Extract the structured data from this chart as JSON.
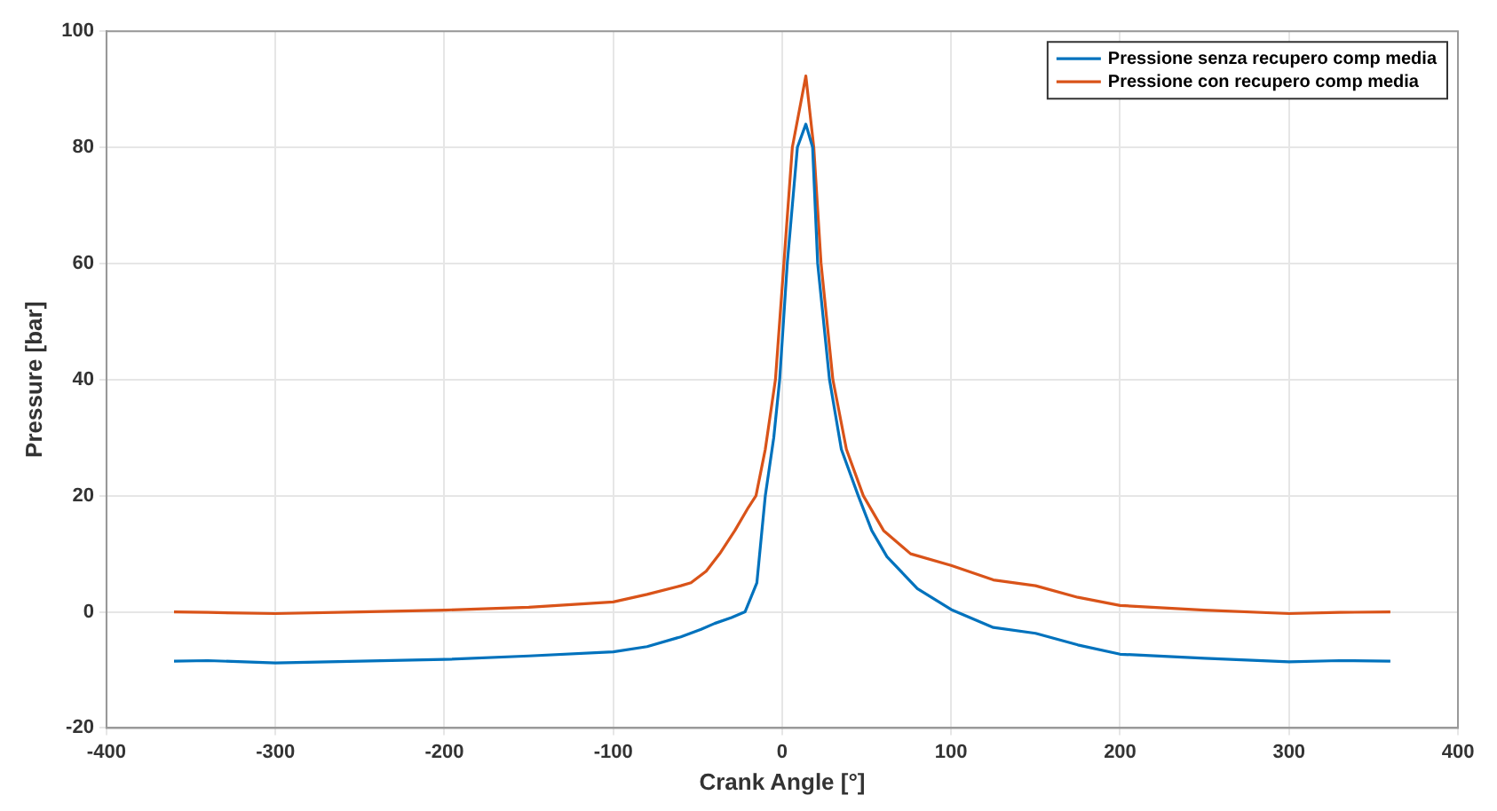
{
  "chart_data": {
    "type": "line",
    "xlabel": "Crank Angle [°]",
    "ylabel": "Pressure [bar]",
    "xlim": [
      -400,
      400
    ],
    "xticks": [
      -400,
      -300,
      -200,
      -100,
      0,
      100,
      200,
      300,
      400
    ],
    "ylim": [
      -20,
      100
    ],
    "yticks": [
      -20,
      0,
      20,
      40,
      60,
      80,
      100
    ],
    "grid": true,
    "legend": "top right",
    "marker": "none",
    "line_style": "solid",
    "series": [
      {
        "name": "Pressione senza recupero comp media",
        "color": "#0072bd",
        "x": [
          -360,
          -340,
          -300,
          -250,
          -200,
          -150,
          -100,
          -80,
          -60,
          -48,
          -40,
          -30,
          -22,
          -15,
          -10,
          -5,
          -1.5,
          3,
          9,
          14,
          18,
          21,
          28,
          35,
          45,
          53,
          62,
          80,
          100,
          125,
          150,
          175,
          200,
          250,
          300,
          330,
          360
        ],
        "values": [
          -8.5,
          -8.4,
          -8.8,
          -8.5,
          -8.2,
          -7.6,
          -6.9,
          -6,
          -4.3,
          -3,
          -2,
          -1,
          0,
          5,
          20,
          30,
          40,
          60,
          80,
          84,
          80,
          60,
          40,
          28,
          20,
          14,
          9.5,
          4,
          0.4,
          -2.7,
          -3.7,
          -5.7,
          -7.3,
          -8,
          -8.6,
          -8.4,
          -8.5
        ]
      },
      {
        "name": "Pressione con recupero comp media",
        "color": "#d95319",
        "x": [
          -360,
          -340,
          -300,
          -250,
          -200,
          -150,
          -100,
          -80,
          -60,
          -54,
          -45,
          -37,
          -28,
          -20,
          -15.5,
          -10,
          -4,
          1,
          6,
          14,
          18.7,
          23,
          30,
          38,
          48,
          60,
          76,
          100,
          125,
          150,
          175,
          200,
          250,
          300,
          330,
          360
        ],
        "values": [
          0,
          -0.1,
          -0.3,
          0,
          0.3,
          0.8,
          1.7,
          3,
          4.5,
          5,
          7,
          10,
          14,
          18,
          20,
          28,
          40,
          60,
          80,
          92.3,
          80,
          60,
          40,
          28,
          20,
          14,
          10,
          8,
          5.5,
          4.5,
          2.5,
          1.1,
          0.3,
          -0.3,
          -0.1,
          0
        ]
      }
    ]
  }
}
